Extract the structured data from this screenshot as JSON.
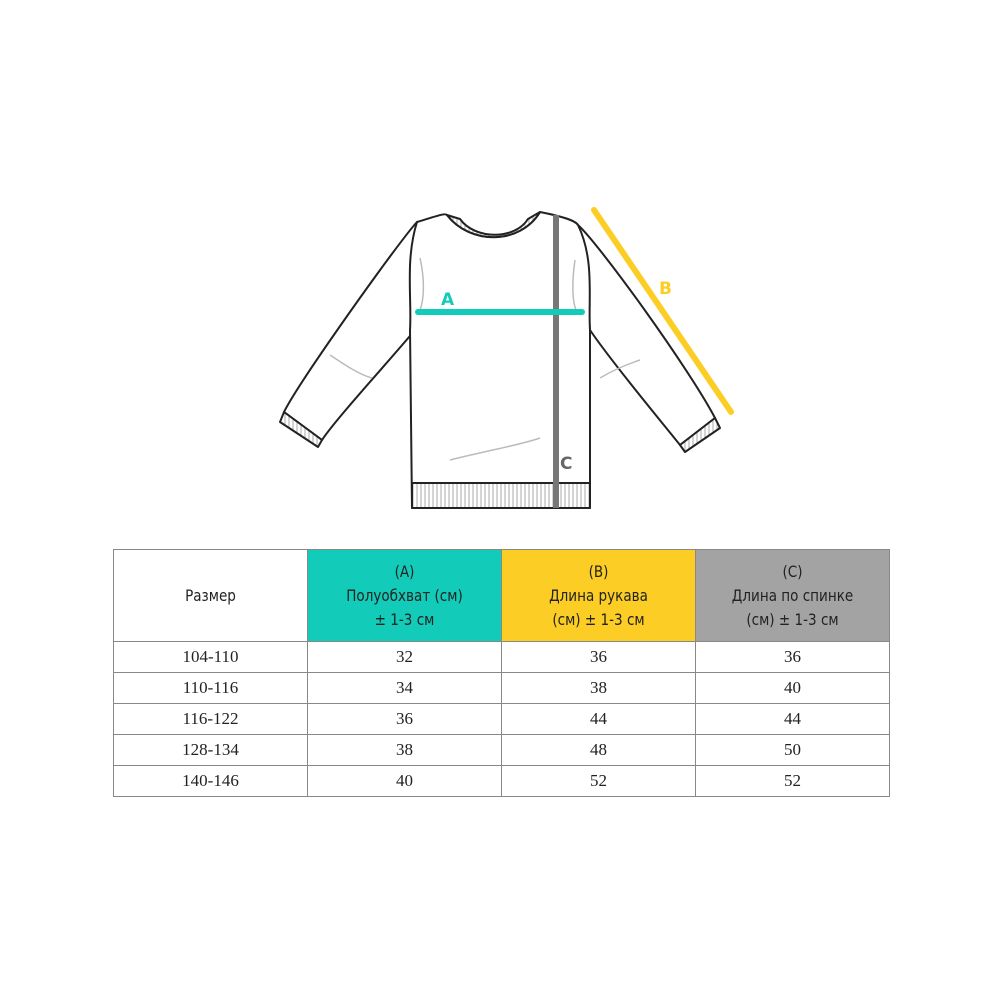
{
  "diagram": {
    "labels": {
      "a": "A",
      "b": "B",
      "c": "C"
    },
    "colors": {
      "a": "#12cbb8",
      "b": "#fbcd25",
      "c": "#777777"
    }
  },
  "table": {
    "headers": [
      {
        "lines": [
          "Размер"
        ],
        "color": "#ffffff"
      },
      {
        "lines": [
          "(A)",
          "Полуобхват (см)",
          "± 1-3 см"
        ],
        "color": "#12cbb8"
      },
      {
        "lines": [
          "(B)",
          "Длина рукава",
          "(см) ± 1-3 см"
        ],
        "color": "#fbcd25"
      },
      {
        "lines": [
          "(C)",
          "Длина по спинке",
          "(см) ± 1-3 см"
        ],
        "color": "#a3a3a3"
      }
    ],
    "rows": [
      [
        "104-110",
        "32",
        "36",
        "36"
      ],
      [
        "110-116",
        "34",
        "38",
        "40"
      ],
      [
        "116-122",
        "36",
        "44",
        "44"
      ],
      [
        "128-134",
        "38",
        "48",
        "50"
      ],
      [
        "140-146",
        "40",
        "52",
        "52"
      ]
    ]
  }
}
